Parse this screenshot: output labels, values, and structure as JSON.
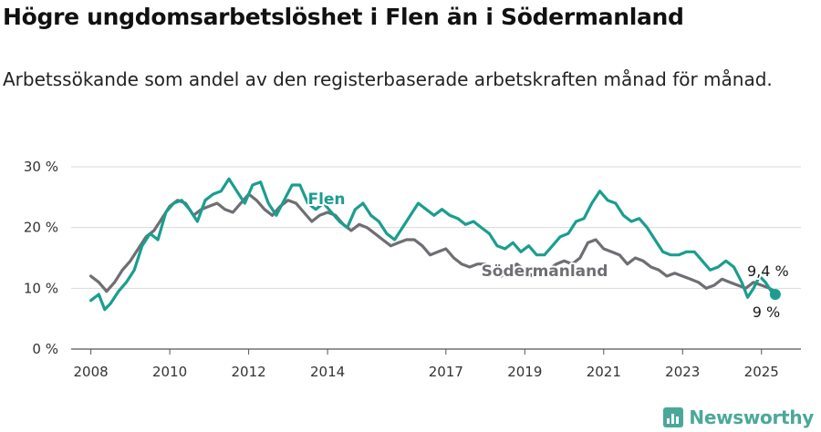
{
  "header": {
    "title": "Högre ungdomsarbetslöshet i Flen än i Södermanland",
    "subtitle": "Arbetssökande som andel av den registerbaserade arbetskraften månad för månad."
  },
  "brand": {
    "name": "Newsworthy",
    "icon": "bar-chart-logo-icon",
    "color": "#4aa89a"
  },
  "chart_data": {
    "type": "line",
    "title": "Högre ungdomsarbetslöshet i Flen än i Södermanland",
    "subtitle": "Arbetssökande som andel av den registerbaserade arbetskraften månad för månad.",
    "xlabel": "",
    "ylabel": "",
    "xlim": [
      2007.5,
      2026.0
    ],
    "ylim": [
      0,
      30
    ],
    "grid": true,
    "x_ticks": [
      2008,
      2010,
      2012,
      2014,
      2017,
      2019,
      2021,
      2023,
      2025
    ],
    "x_tick_labels": [
      "2008",
      "2010",
      "2012",
      "2014",
      "2017",
      "2019",
      "2021",
      "2023",
      "2025"
    ],
    "y_ticks": [
      0,
      10,
      20,
      30
    ],
    "y_tick_labels": [
      "0 %",
      "10 %",
      "20 %",
      "30 %"
    ],
    "series": [
      {
        "name": "Södermanland",
        "color": "#6e6e73",
        "end_label": "9,4 %",
        "points": [
          [
            2008.0,
            12.0
          ],
          [
            2008.2,
            11.0
          ],
          [
            2008.4,
            9.5
          ],
          [
            2008.6,
            11.0
          ],
          [
            2008.8,
            13.0
          ],
          [
            2009.0,
            14.5
          ],
          [
            2009.2,
            16.5
          ],
          [
            2009.4,
            18.5
          ],
          [
            2009.6,
            19.5
          ],
          [
            2009.8,
            21.5
          ],
          [
            2010.0,
            23.5
          ],
          [
            2010.2,
            24.5
          ],
          [
            2010.4,
            24.0
          ],
          [
            2010.6,
            22.0
          ],
          [
            2010.8,
            23.0
          ],
          [
            2011.0,
            23.5
          ],
          [
            2011.2,
            24.0
          ],
          [
            2011.4,
            23.0
          ],
          [
            2011.6,
            22.5
          ],
          [
            2011.8,
            24.0
          ],
          [
            2012.0,
            25.5
          ],
          [
            2012.2,
            24.5
          ],
          [
            2012.4,
            23.0
          ],
          [
            2012.6,
            22.0
          ],
          [
            2012.8,
            23.5
          ],
          [
            2013.0,
            24.5
          ],
          [
            2013.2,
            24.0
          ],
          [
            2013.4,
            22.5
          ],
          [
            2013.6,
            21.0
          ],
          [
            2013.8,
            22.0
          ],
          [
            2014.0,
            22.5
          ],
          [
            2014.2,
            22.0
          ],
          [
            2014.4,
            20.5
          ],
          [
            2014.6,
            19.5
          ],
          [
            2014.8,
            20.5
          ],
          [
            2015.0,
            20.0
          ],
          [
            2015.2,
            19.0
          ],
          [
            2015.4,
            18.0
          ],
          [
            2015.6,
            17.0
          ],
          [
            2015.8,
            17.5
          ],
          [
            2016.0,
            18.0
          ],
          [
            2016.2,
            18.0
          ],
          [
            2016.4,
            17.0
          ],
          [
            2016.6,
            15.5
          ],
          [
            2016.8,
            16.0
          ],
          [
            2017.0,
            16.5
          ],
          [
            2017.2,
            15.0
          ],
          [
            2017.4,
            14.0
          ],
          [
            2017.6,
            13.5
          ],
          [
            2017.8,
            14.0
          ],
          [
            2018.0,
            14.0
          ],
          [
            2018.2,
            13.0
          ],
          [
            2018.4,
            12.0
          ],
          [
            2018.6,
            13.0
          ],
          [
            2018.8,
            14.0
          ],
          [
            2019.0,
            13.0
          ],
          [
            2019.2,
            12.0
          ],
          [
            2019.4,
            12.5
          ],
          [
            2019.6,
            13.0
          ],
          [
            2019.8,
            14.0
          ],
          [
            2020.0,
            14.5
          ],
          [
            2020.2,
            14.0
          ],
          [
            2020.4,
            15.0
          ],
          [
            2020.6,
            17.5
          ],
          [
            2020.8,
            18.0
          ],
          [
            2021.0,
            16.5
          ],
          [
            2021.2,
            16.0
          ],
          [
            2021.4,
            15.5
          ],
          [
            2021.6,
            14.0
          ],
          [
            2021.8,
            15.0
          ],
          [
            2022.0,
            14.5
          ],
          [
            2022.2,
            13.5
          ],
          [
            2022.4,
            13.0
          ],
          [
            2022.6,
            12.0
          ],
          [
            2022.8,
            12.5
          ],
          [
            2023.0,
            12.0
          ],
          [
            2023.2,
            11.5
          ],
          [
            2023.4,
            11.0
          ],
          [
            2023.6,
            10.0
          ],
          [
            2023.8,
            10.5
          ],
          [
            2024.0,
            11.5
          ],
          [
            2024.2,
            11.0
          ],
          [
            2024.4,
            10.5
          ],
          [
            2024.6,
            10.0
          ],
          [
            2024.8,
            11.0
          ],
          [
            2025.0,
            10.5
          ],
          [
            2025.2,
            10.0
          ],
          [
            2025.35,
            9.4
          ]
        ]
      },
      {
        "name": "Flen",
        "color": "#1a9e8f",
        "end_label": "9 %",
        "points": [
          [
            2008.0,
            8.0
          ],
          [
            2008.2,
            9.0
          ],
          [
            2008.35,
            6.5
          ],
          [
            2008.5,
            7.5
          ],
          [
            2008.7,
            9.5
          ],
          [
            2008.9,
            11.0
          ],
          [
            2009.1,
            13.0
          ],
          [
            2009.3,
            17.0
          ],
          [
            2009.5,
            19.0
          ],
          [
            2009.7,
            18.0
          ],
          [
            2009.9,
            22.5
          ],
          [
            2010.1,
            24.0
          ],
          [
            2010.3,
            24.5
          ],
          [
            2010.5,
            23.0
          ],
          [
            2010.7,
            21.0
          ],
          [
            2010.9,
            24.5
          ],
          [
            2011.1,
            25.5
          ],
          [
            2011.3,
            26.0
          ],
          [
            2011.5,
            28.0
          ],
          [
            2011.7,
            26.0
          ],
          [
            2011.9,
            24.0
          ],
          [
            2012.1,
            27.0
          ],
          [
            2012.3,
            27.5
          ],
          [
            2012.5,
            24.0
          ],
          [
            2012.7,
            22.0
          ],
          [
            2012.9,
            24.5
          ],
          [
            2013.1,
            27.0
          ],
          [
            2013.3,
            27.0
          ],
          [
            2013.5,
            24.0
          ],
          [
            2013.7,
            23.0
          ],
          [
            2013.9,
            24.0
          ],
          [
            2014.1,
            22.5
          ],
          [
            2014.3,
            21.0
          ],
          [
            2014.5,
            20.0
          ],
          [
            2014.7,
            23.0
          ],
          [
            2014.9,
            24.0
          ],
          [
            2015.1,
            22.0
          ],
          [
            2015.3,
            21.0
          ],
          [
            2015.5,
            19.0
          ],
          [
            2015.7,
            18.0
          ],
          [
            2015.9,
            20.0
          ],
          [
            2016.1,
            22.0
          ],
          [
            2016.3,
            24.0
          ],
          [
            2016.5,
            23.0
          ],
          [
            2016.7,
            22.0
          ],
          [
            2016.9,
            23.0
          ],
          [
            2017.1,
            22.0
          ],
          [
            2017.3,
            21.5
          ],
          [
            2017.5,
            20.5
          ],
          [
            2017.7,
            21.0
          ],
          [
            2017.9,
            20.0
          ],
          [
            2018.1,
            19.0
          ],
          [
            2018.3,
            17.0
          ],
          [
            2018.5,
            16.5
          ],
          [
            2018.7,
            17.5
          ],
          [
            2018.9,
            16.0
          ],
          [
            2019.1,
            17.0
          ],
          [
            2019.3,
            15.5
          ],
          [
            2019.5,
            15.5
          ],
          [
            2019.7,
            17.0
          ],
          [
            2019.9,
            18.5
          ],
          [
            2020.1,
            19.0
          ],
          [
            2020.3,
            21.0
          ],
          [
            2020.5,
            21.5
          ],
          [
            2020.7,
            24.0
          ],
          [
            2020.9,
            26.0
          ],
          [
            2021.1,
            24.5
          ],
          [
            2021.3,
            24.0
          ],
          [
            2021.5,
            22.0
          ],
          [
            2021.7,
            21.0
          ],
          [
            2021.9,
            21.5
          ],
          [
            2022.1,
            20.0
          ],
          [
            2022.3,
            18.0
          ],
          [
            2022.5,
            16.0
          ],
          [
            2022.7,
            15.5
          ],
          [
            2022.9,
            15.5
          ],
          [
            2023.1,
            16.0
          ],
          [
            2023.3,
            16.0
          ],
          [
            2023.5,
            14.5
          ],
          [
            2023.7,
            13.0
          ],
          [
            2023.9,
            13.5
          ],
          [
            2024.1,
            14.5
          ],
          [
            2024.3,
            13.5
          ],
          [
            2024.5,
            11.0
          ],
          [
            2024.65,
            8.5
          ],
          [
            2024.8,
            10.0
          ],
          [
            2024.95,
            12.0
          ],
          [
            2025.1,
            11.0
          ],
          [
            2025.25,
            9.5
          ],
          [
            2025.35,
            9.0
          ]
        ]
      }
    ]
  }
}
